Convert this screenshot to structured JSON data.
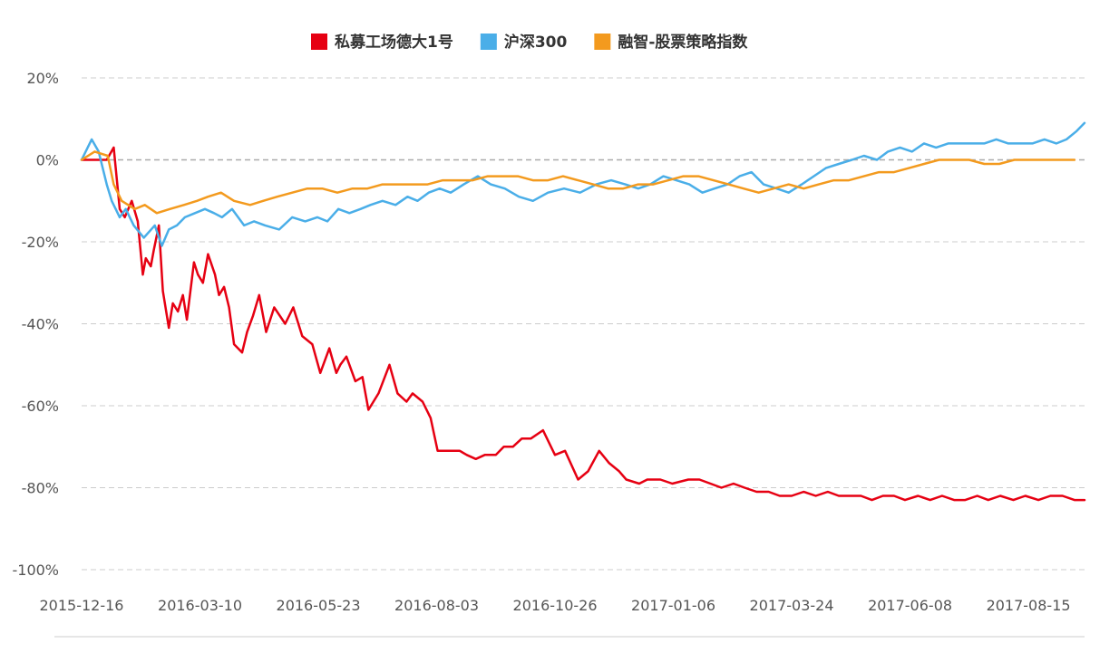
{
  "chart_data": {
    "type": "line",
    "title": "",
    "xlabel": "",
    "ylabel": "",
    "ylim": [
      -100,
      20
    ],
    "yticks": [
      20,
      0,
      -20,
      -40,
      -60,
      -80,
      -100
    ],
    "ytick_labels": [
      "20%",
      "0%",
      "-20%",
      "-40%",
      "-60%",
      "-80%",
      "-100%"
    ],
    "x_tick_labels": [
      "2015-12-16",
      "2016-03-10",
      "2016-05-23",
      "2016-08-03",
      "2016-10-26",
      "2017-01-06",
      "2017-03-24",
      "2017-06-08",
      "2017-08-15"
    ],
    "x_range": [
      0,
      100
    ],
    "x_tick_positions": [
      0,
      11.8,
      23.6,
      35.4,
      47.2,
      59.0,
      70.8,
      82.6,
      94.4
    ],
    "grid": "horizontal dashed",
    "legend_position": "top-center",
    "series": [
      {
        "name": "私募工场德大1号",
        "color": "#e60012",
        "x": [
          0,
          2.5,
          3.2,
          3.8,
          4.3,
          5.0,
          5.6,
          6.1,
          6.4,
          6.9,
          7.2,
          7.7,
          8.1,
          8.7,
          9.1,
          9.6,
          10.1,
          10.5,
          11.2,
          11.6,
          12.1,
          12.6,
          13.3,
          13.7,
          14.2,
          14.7,
          15.2,
          16.0,
          16.5,
          17.1,
          17.7,
          18.4,
          19.2,
          20.3,
          21.1,
          22.0,
          23.0,
          23.8,
          24.7,
          25.4,
          25.8,
          26.4,
          27.3,
          28.0,
          28.6,
          29.6,
          30.7,
          31.5,
          32.4,
          33.0,
          34.0,
          34.8,
          35.5,
          36.7,
          37.7,
          38.4,
          39.3,
          40.2,
          41.3,
          42.1,
          43.0,
          43.9,
          44.8,
          46.0,
          47.2,
          48.2,
          49.5,
          50.5,
          51.6,
          52.6,
          53.6,
          54.3,
          55.6,
          56.4,
          57.7,
          58.9,
          60.5,
          61.6,
          62.7,
          63.8,
          65.0,
          66.1,
          67.3,
          68.5,
          69.6,
          70.8,
          72.0,
          73.2,
          74.4,
          75.5,
          76.7,
          77.7,
          78.8,
          79.9,
          81.0,
          82.1,
          83.4,
          84.6,
          85.8,
          87.0,
          88.1,
          89.3,
          90.4,
          91.6,
          92.9,
          94.1,
          95.4,
          96.6,
          97.8,
          99.0,
          100
        ],
        "values": [
          0,
          0,
          3,
          -12,
          -14,
          -10,
          -15,
          -28,
          -24,
          -26,
          -22,
          -16,
          -32,
          -41,
          -35,
          -37,
          -33,
          -39,
          -25,
          -28,
          -30,
          -23,
          -28,
          -33,
          -31,
          -36,
          -45,
          -47,
          -42,
          -38,
          -33,
          -42,
          -36,
          -40,
          -36,
          -43,
          -45,
          -52,
          -46,
          -52,
          -50,
          -48,
          -54,
          -53,
          -61,
          -57,
          -50,
          -57,
          -59,
          -57,
          -59,
          -63,
          -71,
          -71,
          -71,
          -72,
          -73,
          -72,
          -72,
          -70,
          -70,
          -68,
          -68,
          -66,
          -72,
          -71,
          -78,
          -76,
          -71,
          -74,
          -76,
          -78,
          -79,
          -78,
          -78,
          -79,
          -78,
          -78,
          -79,
          -80,
          -79,
          -80,
          -81,
          -81,
          -82,
          -82,
          -81,
          -82,
          -81,
          -82,
          -82,
          -82,
          -83,
          -82,
          -82,
          -83,
          -82,
          -83,
          -82,
          -83,
          -83,
          -82,
          -83,
          -82,
          -83,
          -82,
          -83,
          -82,
          -82,
          -83,
          -83
        ]
      },
      {
        "name": "沪深300",
        "color": "#4aaee8",
        "x": [
          0,
          1.0,
          1.7,
          2.5,
          3.0,
          3.8,
          4.4,
          5.2,
          6.2,
          7.3,
          8.0,
          8.7,
          9.5,
          10.3,
          11.3,
          12.3,
          13.2,
          14.0,
          15.0,
          16.2,
          17.2,
          18.3,
          19.7,
          21.0,
          22.3,
          23.5,
          24.5,
          25.6,
          26.7,
          27.8,
          28.8,
          30.0,
          31.3,
          32.5,
          33.5,
          34.6,
          35.7,
          36.8,
          38.1,
          39.5,
          40.8,
          42.2,
          43.6,
          45.0,
          46.5,
          48.1,
          49.7,
          51.3,
          52.8,
          54.2,
          55.5,
          56.7,
          58.0,
          59.3,
          60.6,
          61.9,
          63.1,
          64.4,
          65.6,
          66.8,
          68.0,
          69.3,
          70.5,
          71.8,
          73.0,
          74.2,
          75.5,
          76.8,
          78.0,
          79.3,
          80.4,
          81.6,
          82.8,
          84.0,
          85.2,
          86.4,
          87.6,
          88.8,
          90.0,
          91.2,
          92.4,
          93.6,
          94.8,
          96.0,
          97.2,
          98.2,
          99.2,
          100
        ],
        "values": [
          0,
          5,
          2,
          -6,
          -10,
          -14,
          -12,
          -16,
          -19,
          -16,
          -21,
          -17,
          -16,
          -14,
          -13,
          -12,
          -13,
          -14,
          -12,
          -16,
          -15,
          -16,
          -17,
          -14,
          -15,
          -14,
          -15,
          -12,
          -13,
          -12,
          -11,
          -10,
          -11,
          -9,
          -10,
          -8,
          -7,
          -8,
          -6,
          -4,
          -6,
          -7,
          -9,
          -10,
          -8,
          -7,
          -8,
          -6,
          -5,
          -6,
          -7,
          -6,
          -4,
          -5,
          -6,
          -8,
          -7,
          -6,
          -4,
          -3,
          -6,
          -7,
          -8,
          -6,
          -4,
          -2,
          -1,
          0,
          1,
          0,
          2,
          3,
          2,
          4,
          3,
          4,
          4,
          4,
          4,
          5,
          4,
          4,
          4,
          5,
          4,
          5,
          7,
          9
        ]
      },
      {
        "name": "融智-股票策略指数",
        "color": "#f39a1e",
        "x": [
          0,
          1.3,
          2.6,
          3.2,
          4.0,
          5.3,
          6.3,
          7.5,
          8.8,
          10.2,
          11.5,
          12.6,
          13.9,
          15.2,
          16.8,
          18.1,
          19.5,
          21.0,
          22.5,
          24.0,
          25.5,
          27.0,
          28.5,
          30.0,
          31.5,
          33.0,
          34.5,
          36.0,
          37.5,
          39.0,
          40.5,
          42.0,
          43.5,
          45.0,
          46.5,
          48.0,
          49.5,
          51.0,
          52.5,
          54.0,
          55.5,
          57.0,
          58.5,
          60.0,
          61.5,
          63.0,
          64.5,
          66.0,
          67.5,
          69.0,
          70.5,
          72.0,
          73.5,
          75.0,
          76.5,
          78.0,
          79.5,
          81.0,
          82.5,
          84.0,
          85.5,
          87.0,
          88.5,
          90.0,
          91.5,
          93.0,
          94.5,
          96.0,
          97.5,
          99.0
        ],
        "values": [
          0,
          2,
          1,
          -6,
          -10,
          -12,
          -11,
          -13,
          -12,
          -11,
          -10,
          -9,
          -8,
          -10,
          -11,
          -10,
          -9,
          -8,
          -7,
          -7,
          -8,
          -7,
          -7,
          -6,
          -6,
          -6,
          -6,
          -5,
          -5,
          -5,
          -4,
          -4,
          -4,
          -5,
          -5,
          -4,
          -5,
          -6,
          -7,
          -7,
          -6,
          -6,
          -5,
          -4,
          -4,
          -5,
          -6,
          -7,
          -8,
          -7,
          -6,
          -7,
          -6,
          -5,
          -5,
          -4,
          -3,
          -3,
          -2,
          -1,
          0,
          0,
          0,
          -1,
          -1,
          0,
          0,
          0,
          0,
          0
        ]
      }
    ]
  }
}
